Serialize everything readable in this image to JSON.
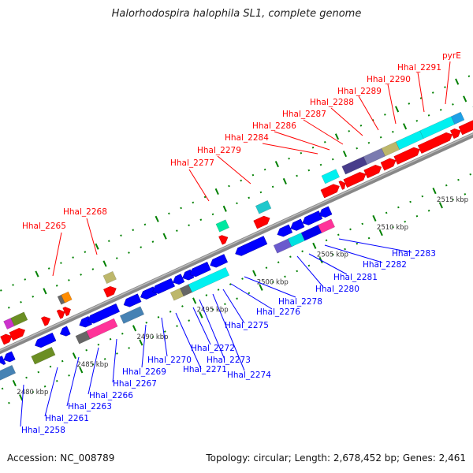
{
  "title": "Halorhodospira halophila SL1, complete genome",
  "footer": {
    "accession": "Accession: NC_008789",
    "summary": "Topology: circular; Length: 2,678,452 bp; Genes: 2,461"
  },
  "colors": {
    "forward": "#ff0000",
    "reverse": "#0000ff",
    "backbone": "#888888",
    "tick": "#008000",
    "forward_label": "#ff0000",
    "reverse_label": "#0000ff"
  },
  "tick_labels": [
    {
      "kbp": 2480,
      "label": "2480 kbp"
    },
    {
      "kbp": 2485,
      "label": "2485 kbp"
    },
    {
      "kbp": 2490,
      "label": "2490 kbp"
    },
    {
      "kbp": 2495,
      "label": "2495 kbp"
    },
    {
      "kbp": 2500,
      "label": "2500 kbp"
    },
    {
      "kbp": 2505,
      "label": "2505 kbp"
    },
    {
      "kbp": 2510,
      "label": "2510 kbp"
    },
    {
      "kbp": 2515,
      "label": "2515 kbp"
    }
  ],
  "forward_genes": [
    [
      2480.5,
      2481.3
    ],
    [
      2481.25,
      2482.4
    ],
    [
      2483.9,
      2484.5
    ],
    [
      2485.2,
      2485.7
    ],
    [
      2485.7,
      2486.2
    ],
    [
      2489.1,
      2490.0
    ],
    [
      2498.7,
      2499.3
    ],
    [
      2501.6,
      2502.8
    ],
    [
      2507.2,
      2508.6
    ],
    [
      2508.7,
      2509.1
    ],
    [
      2509.1,
      2510.8
    ],
    [
      2510.8,
      2512.1
    ],
    [
      2512.2,
      2513.3
    ],
    [
      2513.3,
      2515.3
    ],
    [
      2515.3,
      2518.0
    ],
    [
      2518.0,
      2518.7
    ],
    [
      2518.7,
      2520.5
    ]
  ],
  "forward_cog": [
    {
      "range": [
        2481.2,
        2481.8
      ],
      "color": "#cc33cc"
    },
    {
      "range": [
        2481.8,
        2482.9
      ],
      "color": "#6b8e23"
    },
    {
      "range": [
        2485.7,
        2486.2
      ],
      "color": "#666666"
    },
    {
      "range": [
        2486.0,
        2486.6
      ],
      "color": "#ff8c00"
    },
    {
      "range": [
        2489.5,
        2490.3
      ],
      "color": "#bdb76b"
    },
    {
      "range": [
        2498.9,
        2499.7
      ],
      "color": "#00e8a0"
    },
    {
      "range": [
        2502.2,
        2503.2
      ],
      "color": "#20c8cc"
    },
    {
      "range": [
        2507.7,
        2508.9
      ],
      "color": "#00f0f0"
    },
    {
      "range": [
        2509.4,
        2511.2
      ],
      "color": "#483d8b"
    },
    {
      "range": [
        2511.2,
        2512.7
      ],
      "color": "#7b7bb0"
    },
    {
      "range": [
        2512.7,
        2513.9
      ],
      "color": "#bdb76b"
    },
    {
      "range": [
        2513.9,
        2515.9
      ],
      "color": "#00f0f0"
    },
    {
      "range": [
        2515.9,
        2518.5
      ],
      "color": "#00f0f0"
    },
    {
      "range": [
        2518.5,
        2519.3
      ],
      "color": "#1ea0e6"
    },
    {
      "range": [
        2520.3,
        2521.0
      ],
      "color": "#00e8a0"
    }
  ],
  "reverse_genes": [
    [
      2479.6,
      2480.0
    ],
    [
      2480.0,
      2480.8
    ],
    [
      2482.6,
      2484.2
    ],
    [
      2484.7,
      2485.4
    ],
    [
      2486.3,
      2487.2
    ],
    [
      2487.0,
      2489.5
    ],
    [
      2490.0,
      2491.3
    ],
    [
      2491.4,
      2492.6
    ],
    [
      2492.4,
      2494.1
    ],
    [
      2494.1,
      2494.9
    ],
    [
      2494.9,
      2495.7
    ],
    [
      2495.5,
      2497.1
    ],
    [
      2497.2,
      2498.5
    ],
    [
      2499.3,
      2501.8
    ],
    [
      2502.8,
      2503.9
    ],
    [
      2503.9,
      2504.9
    ],
    [
      2504.9,
      2506.4
    ],
    [
      2506.3,
      2507.2
    ]
  ],
  "reverse_cog": [
    {
      "range": [
        2478.8,
        2480.4
      ],
      "color": "#4682b4"
    },
    {
      "range": [
        2482.0,
        2483.7
      ],
      "color": "#6b8e23"
    },
    {
      "range": [
        2485.7,
        2486.8
      ],
      "color": "#666666"
    },
    {
      "range": [
        2486.6,
        2488.9
      ],
      "color": "#ff3399"
    },
    {
      "range": [
        2489.4,
        2491.1
      ],
      "color": "#4682b4"
    },
    {
      "range": [
        2493.6,
        2494.5
      ],
      "color": "#bdb76b"
    },
    {
      "range": [
        2494.4,
        2495.2
      ],
      "color": "#666666"
    },
    {
      "range": [
        2495.1,
        2498.2
      ],
      "color": "#00f0f0"
    },
    {
      "range": [
        2502.2,
        2503.6
      ],
      "color": "#6a5acd"
    },
    {
      "range": [
        2503.4,
        2504.5
      ],
      "color": "#00e0e0"
    },
    {
      "range": [
        2504.5,
        2506.0
      ],
      "color": "#0000ee"
    },
    {
      "range": [
        2505.9,
        2507.0
      ],
      "color": "#ff3399"
    }
  ],
  "forward_labels": [
    "Hhal_2265",
    "Hhal_2268",
    "Hhal_2277",
    "Hhal_2279",
    "Hhal_2284",
    "Hhal_2286",
    "Hhal_2287",
    "Hhal_2288",
    "Hhal_2289",
    "Hhal_2290",
    "Hhal_2291",
    "pyrE"
  ],
  "reverse_labels": [
    "Hhal_2258",
    "Hhal_2261",
    "Hhal_2263",
    "Hhal_2266",
    "Hhal_2267",
    "Hhal_2269",
    "Hhal_2270",
    "Hhal_2271",
    "Hhal_2272",
    "Hhal_2273",
    "Hhal_2274",
    "Hhal_2275",
    "Hhal_2276",
    "Hhal_2278",
    "Hhal_2280",
    "Hhal_2281",
    "Hhal_2282",
    "Hhal_2283"
  ]
}
